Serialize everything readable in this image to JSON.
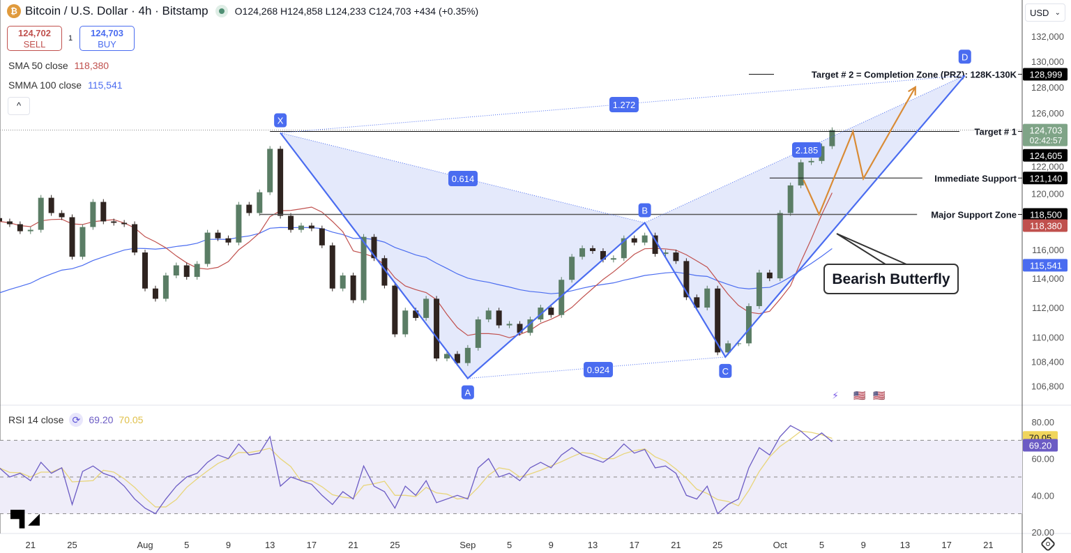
{
  "header": {
    "coin_icon": "bitcoin-icon",
    "coin_glyph": "₿",
    "title": "Bitcoin / U.S. Dollar · 4h · Bitstamp",
    "ohlc": "O124,268  H124,858  L124,233  C124,703  +434 (+0.35%)",
    "sell_price": "124,702",
    "sell_label": "SELL",
    "quantity": "1",
    "buy_price": "124,703",
    "buy_label": "BUY",
    "collapse_glyph": "^"
  },
  "indicators": {
    "sma_label": "SMA 50 close",
    "sma_value": "118,380",
    "smma_label": "SMMA 100 close",
    "smma_value": "115,541",
    "rsi_label": "RSI 14 close",
    "rsi_value": "69.20",
    "rsi_ma_value": "70.05"
  },
  "price_axis": {
    "currency": "USD",
    "ticks": [
      "132,000",
      "130,000",
      "128,000",
      "126,000",
      "122,000",
      "120,000",
      "116,000",
      "114,000",
      "112,000",
      "110,000",
      "108,400",
      "106,800"
    ],
    "tick_values": [
      132000,
      130000,
      128000,
      126000,
      122000,
      120000,
      116000,
      114000,
      112000,
      110000,
      108400,
      106800
    ],
    "labels": [
      {
        "text": "128,999",
        "value": 128999,
        "bg": "#000000",
        "color": "#ffffff"
      },
      {
        "text": "124,703",
        "sub": "02:42:57",
        "value": 124703,
        "bg": "#7fa487",
        "color": "#ffffff"
      },
      {
        "text": "124,605",
        "value": 123700,
        "bg": "#000000",
        "color": "#ffffff"
      },
      {
        "text": "121,140",
        "value": 121140,
        "bg": "#000000",
        "color": "#ffffff"
      },
      {
        "text": "118,500",
        "value": 118500,
        "bg": "#000000",
        "color": "#ffffff"
      },
      {
        "text": "118,380",
        "value": 117700,
        "bg": "#c0504d",
        "color": "#ffffff"
      },
      {
        "text": "115,541",
        "value": 115541,
        "bg": "#4a6cf0",
        "color": "#ffffff"
      }
    ]
  },
  "rsi_axis": {
    "ticks": [
      "80.00",
      "60.00",
      "40.00",
      "20.00"
    ],
    "tick_values": [
      80,
      60,
      40,
      20
    ],
    "labels": [
      {
        "text": "70.05",
        "value": 70.05,
        "bg": "#f0d55c",
        "color": "#131722"
      },
      {
        "text": "69.20",
        "value": 69.2,
        "bg": "#6b5bc4",
        "color": "#ffffff"
      }
    ]
  },
  "time_axis": {
    "ticks": [
      {
        "date": "Jul 21",
        "text": "21"
      },
      {
        "date": "Jul 25",
        "text": "25"
      },
      {
        "date": "Aug 1",
        "text": "Aug"
      },
      {
        "date": "Aug 5",
        "text": "5"
      },
      {
        "date": "Aug 9",
        "text": "9"
      },
      {
        "date": "Aug 13",
        "text": "13"
      },
      {
        "date": "Aug 17",
        "text": "17"
      },
      {
        "date": "Aug 21",
        "text": "21"
      },
      {
        "date": "Aug 25",
        "text": "25"
      },
      {
        "date": "Sep 1",
        "text": "Sep"
      },
      {
        "date": "Sep 5",
        "text": "5"
      },
      {
        "date": "Sep 9",
        "text": "9"
      },
      {
        "date": "Sep 13",
        "text": "13"
      },
      {
        "date": "Sep 17",
        "text": "17"
      },
      {
        "date": "Sep 21",
        "text": "21"
      },
      {
        "date": "Sep 25",
        "text": "25"
      },
      {
        "date": "Oct 1",
        "text": "Oct"
      },
      {
        "date": "Oct 5",
        "text": "5"
      },
      {
        "date": "Oct 9",
        "text": "9"
      },
      {
        "date": "Oct 13",
        "text": "13"
      },
      {
        "date": "Oct 17",
        "text": "17"
      },
      {
        "date": "Oct 21",
        "text": "21"
      }
    ]
  },
  "chart_data": {
    "type": "candlestick",
    "symbol": "BTCUSD",
    "interval": "4h",
    "y_scale": "log",
    "ylim": [
      106000,
      133000
    ],
    "start_date": "Jul 18",
    "closes": [
      118000,
      117800,
      117300,
      117400,
      119700,
      118600,
      118300,
      115500,
      117600,
      119400,
      118000,
      117900,
      117800,
      115800,
      113300,
      112600,
      114200,
      114900,
      114100,
      115000,
      117200,
      116800,
      116500,
      119200,
      118600,
      120100,
      123300,
      118400,
      117400,
      117700,
      117500,
      116300,
      113300,
      114200,
      112500,
      116900,
      115400,
      113500,
      110200,
      111800,
      111300,
      112600,
      108600,
      108900,
      108300,
      109300,
      111200,
      111800,
      110800,
      110900,
      110300,
      111200,
      112000,
      111500,
      113900,
      115500,
      116100,
      115900,
      115300,
      115400,
      116800,
      116500,
      117000,
      115700,
      115800,
      115200,
      112700,
      112000,
      113300,
      109000,
      109600,
      109600,
      112100,
      114400,
      114000,
      118600,
      120600,
      122300,
      122400,
      123500,
      124703
    ],
    "sma_50_color": "#c0504d",
    "smma_100_color": "#4a6cf0",
    "rsi": {
      "values": [
        55,
        50,
        52,
        48,
        58,
        52,
        55,
        35,
        53,
        56,
        52,
        50,
        45,
        38,
        33,
        30,
        38,
        45,
        50,
        52,
        58,
        62,
        60,
        68,
        62,
        63,
        72,
        45,
        50,
        48,
        46,
        40,
        35,
        42,
        38,
        56,
        45,
        42,
        33,
        45,
        40,
        48,
        36,
        38,
        40,
        38,
        55,
        60,
        50,
        52,
        48,
        55,
        58,
        55,
        62,
        66,
        62,
        60,
        58,
        62,
        68,
        63,
        65,
        55,
        56,
        52,
        40,
        38,
        45,
        30,
        35,
        38,
        55,
        66,
        62,
        72,
        78,
        75,
        70,
        74,
        69.2
      ],
      "levels": [
        70,
        50,
        30
      ],
      "ylim": [
        18,
        88
      ],
      "line_color": "#6b5bc4",
      "ma_color": "#e8d57a"
    },
    "harmonic_pattern": {
      "name": "Bearish Butterfly",
      "color": "#4a6cf0",
      "points": [
        {
          "label": "X",
          "date": "Aug 14 00",
          "price": 124500
        },
        {
          "label": "A",
          "date": "Sep 1 00",
          "price": 107300
        },
        {
          "label": "B",
          "date": "Sep 17 24",
          "price": 117900
        },
        {
          "label": "C",
          "date": "Sep 25 18",
          "price": 108700
        },
        {
          "label": "D",
          "date": "Oct 18 18",
          "price": 128900
        }
      ],
      "ratios": [
        {
          "text": "0.614",
          "from": "X",
          "to": "B"
        },
        {
          "text": "0.924",
          "from": "A",
          "to": "C"
        },
        {
          "text": "1.272",
          "from": "X",
          "to": "D"
        },
        {
          "text": "2.185",
          "from": "B",
          "to": "D"
        }
      ]
    },
    "projection_path": {
      "color": "#d98b35",
      "points": [
        {
          "date": "Oct 3 06",
          "price": 121000
        },
        {
          "date": "Oct 4 18",
          "price": 118500
        },
        {
          "date": "Oct 8 00",
          "price": 124600
        },
        {
          "date": "Oct 9 00",
          "price": 121100
        },
        {
          "date": "Oct 14 00",
          "price": 128000
        }
      ]
    },
    "levels": [
      {
        "text": "Target # 2 = Completion Zone (PRZ): 128K-130K",
        "price": 128999,
        "from": "Sep 28",
        "style": "solid"
      },
      {
        "text": "Target # 1",
        "price": 124605,
        "from": "Aug 13",
        "style": "solid"
      },
      {
        "text": "Immediate Support",
        "price": 121140,
        "from": "Sep 30",
        "style": "solid"
      },
      {
        "text": "Major Support Zone",
        "price": 118500,
        "from": "Aug 12",
        "style": "solid"
      }
    ],
    "annotation": "Bearish Butterfly"
  },
  "events": [
    {
      "icon": "lightning-icon",
      "glyph": "⚡"
    },
    {
      "icon": "us-flag-icon",
      "glyph": "🇺🇸"
    },
    {
      "icon": "us-flag-icon",
      "glyph": "🇺🇸"
    }
  ],
  "branding": {
    "logo": "TV"
  }
}
